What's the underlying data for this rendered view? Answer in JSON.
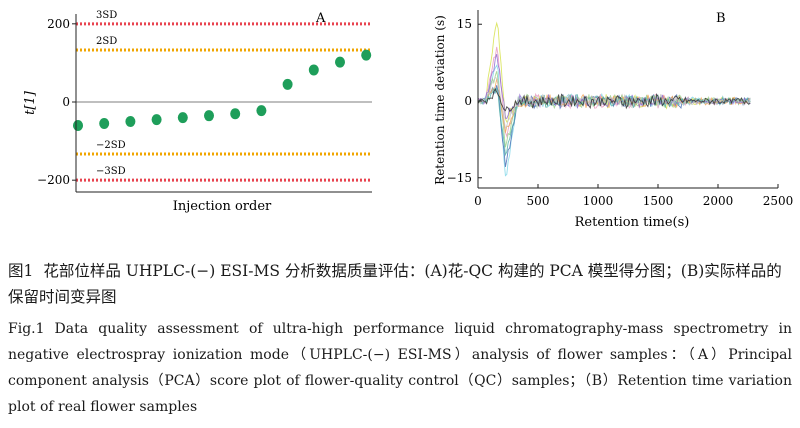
{
  "chart_data": [
    {
      "type": "scatter",
      "panel_label": "A",
      "ylabel": "t[1]",
      "xlabel": "Injection order",
      "ylim": [
        -220,
        220
      ],
      "yticks": [
        "200",
        "0",
        "−200"
      ],
      "ytick_values": [
        200,
        0,
        -200
      ],
      "reference_lines": [
        {
          "label": "3SD",
          "value": 200,
          "color": "#e8434f"
        },
        {
          "label": "2SD",
          "value": 133,
          "color": "#f0a500"
        },
        {
          "label": "0",
          "value": 0,
          "color": "#aaaaaa"
        },
        {
          "label": "−2SD",
          "value": -133,
          "color": "#f0a500"
        },
        {
          "label": "−3SD",
          "value": -200,
          "color": "#e8434f"
        }
      ],
      "point_color": "#1e9e5a",
      "x": [
        1,
        2,
        3,
        4,
        5,
        6,
        7,
        8,
        9,
        10,
        11,
        12
      ],
      "y": [
        -60,
        -55,
        -50,
        -45,
        -40,
        -35,
        -30,
        -22,
        45,
        82,
        102,
        120
      ]
    },
    {
      "type": "line",
      "panel_label": "B",
      "ylabel": "Retention time deviation (s)",
      "xlabel": "Retention time(s)",
      "xlim": [
        0,
        2500
      ],
      "ylim": [
        -17,
        17
      ],
      "xticks": [
        "0",
        "500",
        "1000",
        "1500",
        "2000",
        "2500"
      ],
      "xtick_values": [
        0,
        500,
        1000,
        1500,
        2000,
        2500
      ],
      "yticks": [
        "15",
        "0",
        "−15"
      ],
      "ytick_values": [
        15,
        0,
        -15
      ],
      "x_end": 2270,
      "series_colors": [
        "#d6e24a",
        "#7fd6e8",
        "#e89ac0",
        "#4a6fb5",
        "#9bd08a",
        "#f2a65a",
        "#8f6bd1",
        "#54b3a8",
        "#c7c7c7",
        "#333333"
      ],
      "series_peaks": [
        {
          "peak": 16.5,
          "trough": -4
        },
        {
          "peak": 8,
          "trough": -15.5
        },
        {
          "peak": 11,
          "trough": -7
        },
        {
          "peak": 3,
          "trough": -13
        },
        {
          "peak": 6,
          "trough": -9
        },
        {
          "peak": 4,
          "trough": -6
        },
        {
          "peak": 9,
          "trough": -3
        },
        {
          "peak": 2.5,
          "trough": -11
        },
        {
          "peak": 5,
          "trough": -5
        },
        {
          "peak": 2,
          "trough": -2
        }
      ]
    }
  ],
  "caption": {
    "cn_label": "图1",
    "cn_text": "花部位样品 UHPLC-(−) ESI-MS 分析数据质量评估：(A)花-QC 构建的 PCA 模型得分图；(B)实际样品的保留时间变异图",
    "en_label": "Fig.1",
    "en_text": "Data quality assessment of ultra-high performance liquid chromatography-mass spectrometry in negative electrospray ionization mode（UHPLC-(−) ESI-MS）analysis of flower samples：（A）Principal component analysis（PCA）score plot of flower-quality control（QC）samples；（B）Retention time variation plot of real flower samples"
  }
}
